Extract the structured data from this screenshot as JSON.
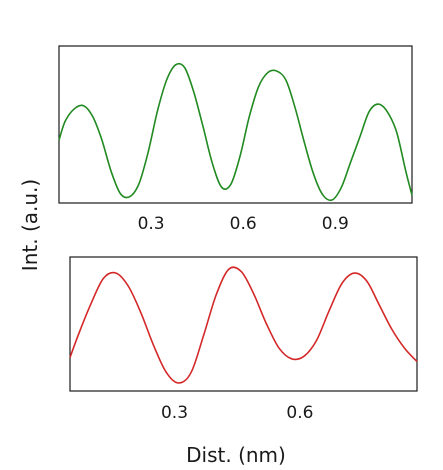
{
  "chart_data": [
    {
      "type": "line",
      "color": "#218a21",
      "xlim": [
        0,
        1.15
      ],
      "ylim": [
        0,
        1
      ],
      "xticks": [
        0.3,
        0.6,
        0.9
      ],
      "xticklabels": [
        "0.3",
        "0.6",
        "0.9"
      ],
      "series": [
        {
          "x": [
            0,
            0.02,
            0.05,
            0.08,
            0.11,
            0.14,
            0.17,
            0.2,
            0.23,
            0.26,
            0.29,
            0.32,
            0.35,
            0.38,
            0.41,
            0.44,
            0.47,
            0.5,
            0.53,
            0.56,
            0.59,
            0.62,
            0.65,
            0.68,
            0.71,
            0.74,
            0.77,
            0.8,
            0.83,
            0.86,
            0.89,
            0.92,
            0.95,
            0.98,
            1.01,
            1.04,
            1.07,
            1.1,
            1.13,
            1.15
          ],
          "y": [
            0.4,
            0.52,
            0.6,
            0.62,
            0.55,
            0.4,
            0.2,
            0.06,
            0.04,
            0.12,
            0.32,
            0.58,
            0.78,
            0.88,
            0.86,
            0.7,
            0.48,
            0.25,
            0.1,
            0.12,
            0.3,
            0.55,
            0.74,
            0.83,
            0.84,
            0.78,
            0.6,
            0.38,
            0.18,
            0.05,
            0.02,
            0.1,
            0.26,
            0.42,
            0.58,
            0.63,
            0.58,
            0.45,
            0.2,
            0.05
          ]
        }
      ]
    },
    {
      "type": "line",
      "color": "#d42828",
      "xlim": [
        0.05,
        0.88
      ],
      "ylim": [
        0,
        1
      ],
      "xticks": [
        0.3,
        0.6
      ],
      "xticklabels": [
        "0.3",
        "0.6"
      ],
      "xlabel": "Dist. (nm)",
      "series": [
        {
          "x": [
            0.05,
            0.07,
            0.1,
            0.13,
            0.16,
            0.19,
            0.22,
            0.25,
            0.28,
            0.31,
            0.34,
            0.37,
            0.4,
            0.43,
            0.46,
            0.49,
            0.52,
            0.55,
            0.58,
            0.61,
            0.64,
            0.67,
            0.7,
            0.73,
            0.76,
            0.79,
            0.82,
            0.85,
            0.88
          ],
          "y": [
            0.25,
            0.42,
            0.65,
            0.84,
            0.88,
            0.78,
            0.58,
            0.34,
            0.14,
            0.06,
            0.14,
            0.42,
            0.72,
            0.91,
            0.89,
            0.72,
            0.5,
            0.32,
            0.24,
            0.26,
            0.38,
            0.6,
            0.8,
            0.88,
            0.82,
            0.64,
            0.46,
            0.32,
            0.22
          ]
        }
      ]
    }
  ],
  "shared": {
    "ylabel": "Int. (a.u.)"
  }
}
